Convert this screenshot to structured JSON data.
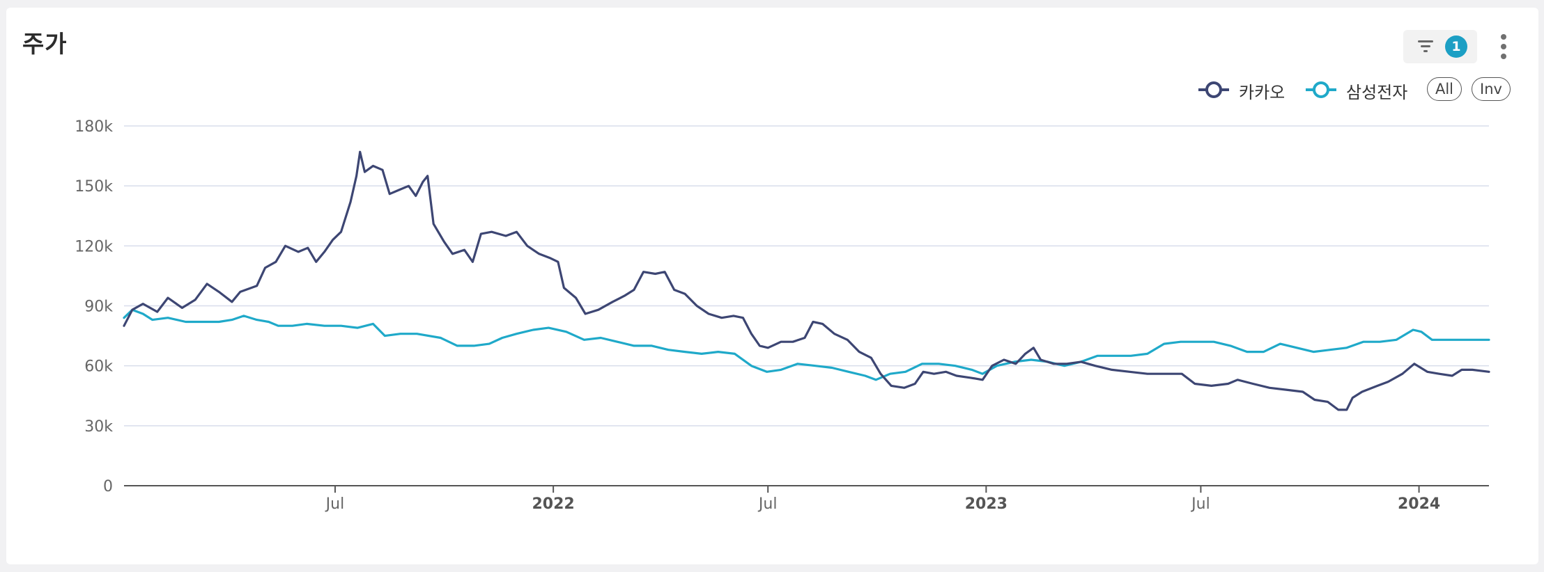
{
  "header": {
    "title": "주가",
    "filter_count": "1"
  },
  "legend_controls": {
    "all_label": "All",
    "inv_label": "Inv"
  },
  "colors": {
    "kakao": "#3d4673",
    "samsung": "#1fa9c9",
    "grid": "#d8ddeb",
    "axis": "#555555"
  },
  "chart_data": {
    "type": "line",
    "title": "주가",
    "x_ticks": [
      {
        "date": "2021-07-01",
        "label": "Jul",
        "bold": false
      },
      {
        "date": "2022-01-01",
        "label": "2022",
        "bold": true
      },
      {
        "date": "2022-07-01",
        "label": "Jul",
        "bold": false
      },
      {
        "date": "2023-01-01",
        "label": "2023",
        "bold": true
      },
      {
        "date": "2023-07-01",
        "label": "Jul",
        "bold": false
      },
      {
        "date": "2024-01-01",
        "label": "2024",
        "bold": true
      }
    ],
    "xlim": [
      "2021-01-04",
      "2024-02-29"
    ],
    "ylim": [
      0,
      180000
    ],
    "y_ticks": [
      {
        "value": 0,
        "label": "0"
      },
      {
        "value": 30000,
        "label": "30k"
      },
      {
        "value": 60000,
        "label": "60k"
      },
      {
        "value": 90000,
        "label": "90k"
      },
      {
        "value": 120000,
        "label": "120k"
      },
      {
        "value": 150000,
        "label": "150k"
      },
      {
        "value": 180000,
        "label": "180k"
      }
    ],
    "grid": true,
    "legend": "top-right",
    "series": [
      {
        "name": "카카오",
        "color": "#3d4673",
        "points": [
          [
            "2021-01-04",
            80000
          ],
          [
            "2021-01-11",
            88000
          ],
          [
            "2021-01-20",
            91000
          ],
          [
            "2021-02-01",
            87000
          ],
          [
            "2021-02-10",
            94000
          ],
          [
            "2021-02-22",
            89000
          ],
          [
            "2021-03-05",
            93000
          ],
          [
            "2021-03-15",
            101000
          ],
          [
            "2021-03-25",
            97000
          ],
          [
            "2021-04-05",
            92000
          ],
          [
            "2021-04-12",
            97000
          ],
          [
            "2021-04-26",
            100000
          ],
          [
            "2021-05-03",
            109000
          ],
          [
            "2021-05-12",
            112000
          ],
          [
            "2021-05-20",
            120000
          ],
          [
            "2021-05-31",
            117000
          ],
          [
            "2021-06-08",
            119000
          ],
          [
            "2021-06-15",
            112000
          ],
          [
            "2021-06-22",
            117000
          ],
          [
            "2021-06-29",
            123000
          ],
          [
            "2021-07-06",
            127000
          ],
          [
            "2021-07-14",
            142000
          ],
          [
            "2021-07-19",
            155000
          ],
          [
            "2021-07-22",
            167000
          ],
          [
            "2021-07-26",
            157000
          ],
          [
            "2021-08-02",
            160000
          ],
          [
            "2021-08-10",
            158000
          ],
          [
            "2021-08-16",
            146000
          ],
          [
            "2021-08-24",
            148000
          ],
          [
            "2021-09-01",
            150000
          ],
          [
            "2021-09-07",
            145000
          ],
          [
            "2021-09-13",
            152000
          ],
          [
            "2021-09-17",
            155000
          ],
          [
            "2021-09-22",
            131000
          ],
          [
            "2021-10-01",
            122000
          ],
          [
            "2021-10-08",
            116000
          ],
          [
            "2021-10-18",
            118000
          ],
          [
            "2021-10-25",
            112000
          ],
          [
            "2021-11-01",
            126000
          ],
          [
            "2021-11-10",
            127000
          ],
          [
            "2021-11-22",
            125000
          ],
          [
            "2021-12-01",
            127000
          ],
          [
            "2021-12-10",
            120000
          ],
          [
            "2021-12-20",
            116000
          ],
          [
            "2021-12-29",
            114000
          ],
          [
            "2022-01-05",
            112000
          ],
          [
            "2022-01-10",
            99000
          ],
          [
            "2022-01-20",
            94000
          ],
          [
            "2022-01-28",
            86000
          ],
          [
            "2022-02-08",
            88000
          ],
          [
            "2022-02-20",
            92000
          ],
          [
            "2022-03-02",
            95000
          ],
          [
            "2022-03-10",
            98000
          ],
          [
            "2022-03-18",
            107000
          ],
          [
            "2022-03-28",
            106000
          ],
          [
            "2022-04-05",
            107000
          ],
          [
            "2022-04-13",
            98000
          ],
          [
            "2022-04-22",
            96000
          ],
          [
            "2022-05-02",
            90000
          ],
          [
            "2022-05-12",
            86000
          ],
          [
            "2022-05-23",
            84000
          ],
          [
            "2022-06-02",
            85000
          ],
          [
            "2022-06-10",
            84000
          ],
          [
            "2022-06-17",
            76000
          ],
          [
            "2022-06-24",
            70000
          ],
          [
            "2022-07-01",
            69000
          ],
          [
            "2022-07-12",
            72000
          ],
          [
            "2022-07-22",
            72000
          ],
          [
            "2022-08-01",
            74000
          ],
          [
            "2022-08-08",
            82000
          ],
          [
            "2022-08-16",
            81000
          ],
          [
            "2022-08-26",
            76000
          ],
          [
            "2022-09-06",
            73000
          ],
          [
            "2022-09-16",
            67000
          ],
          [
            "2022-09-26",
            64000
          ],
          [
            "2022-10-04",
            56000
          ],
          [
            "2022-10-13",
            50000
          ],
          [
            "2022-10-24",
            49000
          ],
          [
            "2022-11-02",
            51000
          ],
          [
            "2022-11-09",
            57000
          ],
          [
            "2022-11-18",
            56000
          ],
          [
            "2022-11-28",
            57000
          ],
          [
            "2022-12-07",
            55000
          ],
          [
            "2022-12-19",
            54000
          ],
          [
            "2022-12-29",
            53000
          ],
          [
            "2023-01-06",
            60000
          ],
          [
            "2023-01-16",
            63000
          ],
          [
            "2023-01-26",
            61000
          ],
          [
            "2023-02-03",
            66000
          ],
          [
            "2023-02-10",
            69000
          ],
          [
            "2023-02-16",
            63000
          ],
          [
            "2023-02-27",
            61000
          ],
          [
            "2023-03-10",
            61000
          ],
          [
            "2023-03-22",
            62000
          ],
          [
            "2023-04-03",
            60000
          ],
          [
            "2023-04-17",
            58000
          ],
          [
            "2023-05-02",
            57000
          ],
          [
            "2023-05-17",
            56000
          ],
          [
            "2023-06-01",
            56000
          ],
          [
            "2023-06-15",
            56000
          ],
          [
            "2023-06-26",
            51000
          ],
          [
            "2023-07-10",
            50000
          ],
          [
            "2023-07-24",
            51000
          ],
          [
            "2023-08-01",
            53000
          ],
          [
            "2023-08-14",
            51000
          ],
          [
            "2023-08-28",
            49000
          ],
          [
            "2023-09-11",
            48000
          ],
          [
            "2023-09-25",
            47000
          ],
          [
            "2023-10-05",
            43000
          ],
          [
            "2023-10-16",
            42000
          ],
          [
            "2023-10-25",
            38000
          ],
          [
            "2023-11-01",
            38000
          ],
          [
            "2023-11-06",
            44000
          ],
          [
            "2023-11-14",
            47000
          ],
          [
            "2023-11-27",
            50000
          ],
          [
            "2023-12-06",
            52000
          ],
          [
            "2023-12-18",
            56000
          ],
          [
            "2023-12-28",
            61000
          ],
          [
            "2024-01-08",
            57000
          ],
          [
            "2024-01-18",
            56000
          ],
          [
            "2024-01-29",
            55000
          ],
          [
            "2024-02-06",
            58000
          ],
          [
            "2024-02-15",
            58000
          ],
          [
            "2024-02-29",
            57000
          ]
        ]
      },
      {
        "name": "삼성전자",
        "color": "#1fa9c9",
        "points": [
          [
            "2021-01-04",
            84000
          ],
          [
            "2021-01-11",
            88000
          ],
          [
            "2021-01-20",
            86000
          ],
          [
            "2021-01-28",
            83000
          ],
          [
            "2021-02-10",
            84000
          ],
          [
            "2021-02-25",
            82000
          ],
          [
            "2021-03-10",
            82000
          ],
          [
            "2021-03-25",
            82000
          ],
          [
            "2021-04-05",
            83000
          ],
          [
            "2021-04-15",
            85000
          ],
          [
            "2021-04-26",
            83000
          ],
          [
            "2021-05-06",
            82000
          ],
          [
            "2021-05-14",
            80000
          ],
          [
            "2021-05-26",
            80000
          ],
          [
            "2021-06-07",
            81000
          ],
          [
            "2021-06-22",
            80000
          ],
          [
            "2021-07-06",
            80000
          ],
          [
            "2021-07-20",
            79000
          ],
          [
            "2021-08-02",
            81000
          ],
          [
            "2021-08-12",
            75000
          ],
          [
            "2021-08-25",
            76000
          ],
          [
            "2021-09-08",
            76000
          ],
          [
            "2021-09-28",
            74000
          ],
          [
            "2021-10-12",
            70000
          ],
          [
            "2021-10-26",
            70000
          ],
          [
            "2021-11-08",
            71000
          ],
          [
            "2021-11-19",
            74000
          ],
          [
            "2021-12-01",
            76000
          ],
          [
            "2021-12-15",
            78000
          ],
          [
            "2021-12-28",
            79000
          ],
          [
            "2022-01-12",
            77000
          ],
          [
            "2022-01-27",
            73000
          ],
          [
            "2022-02-10",
            74000
          ],
          [
            "2022-02-24",
            72000
          ],
          [
            "2022-03-10",
            70000
          ],
          [
            "2022-03-25",
            70000
          ],
          [
            "2022-04-08",
            68000
          ],
          [
            "2022-04-22",
            67000
          ],
          [
            "2022-05-06",
            66000
          ],
          [
            "2022-05-20",
            67000
          ],
          [
            "2022-06-03",
            66000
          ],
          [
            "2022-06-17",
            60000
          ],
          [
            "2022-06-30",
            57000
          ],
          [
            "2022-07-12",
            58000
          ],
          [
            "2022-07-26",
            61000
          ],
          [
            "2022-08-10",
            60000
          ],
          [
            "2022-08-24",
            59000
          ],
          [
            "2022-09-07",
            57000
          ],
          [
            "2022-09-21",
            55000
          ],
          [
            "2022-09-30",
            53000
          ],
          [
            "2022-10-12",
            56000
          ],
          [
            "2022-10-25",
            57000
          ],
          [
            "2022-11-08",
            61000
          ],
          [
            "2022-11-22",
            61000
          ],
          [
            "2022-12-06",
            60000
          ],
          [
            "2022-12-20",
            58000
          ],
          [
            "2022-12-29",
            56000
          ],
          [
            "2023-01-10",
            60000
          ],
          [
            "2023-01-25",
            62000
          ],
          [
            "2023-02-08",
            63000
          ],
          [
            "2023-02-22",
            62000
          ],
          [
            "2023-03-08",
            60000
          ],
          [
            "2023-03-22",
            62000
          ],
          [
            "2023-04-05",
            65000
          ],
          [
            "2023-04-19",
            65000
          ],
          [
            "2023-05-03",
            65000
          ],
          [
            "2023-05-17",
            66000
          ],
          [
            "2023-05-31",
            71000
          ],
          [
            "2023-06-14",
            72000
          ],
          [
            "2023-06-28",
            72000
          ],
          [
            "2023-07-12",
            72000
          ],
          [
            "2023-07-26",
            70000
          ],
          [
            "2023-08-09",
            67000
          ],
          [
            "2023-08-23",
            67000
          ],
          [
            "2023-09-06",
            71000
          ],
          [
            "2023-09-20",
            69000
          ],
          [
            "2023-10-04",
            67000
          ],
          [
            "2023-10-18",
            68000
          ],
          [
            "2023-11-01",
            69000
          ],
          [
            "2023-11-15",
            72000
          ],
          [
            "2023-11-29",
            72000
          ],
          [
            "2023-12-13",
            73000
          ],
          [
            "2023-12-27",
            78000
          ],
          [
            "2024-01-03",
            77000
          ],
          [
            "2024-01-12",
            73000
          ],
          [
            "2024-01-26",
            73000
          ],
          [
            "2024-02-09",
            73000
          ],
          [
            "2024-02-29",
            73000
          ]
        ]
      }
    ]
  }
}
